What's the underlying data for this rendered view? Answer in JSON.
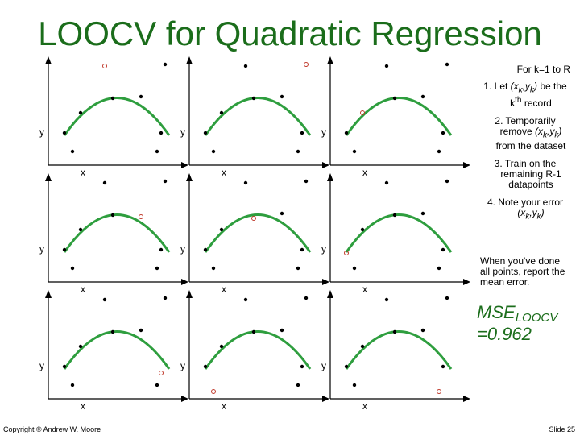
{
  "title": "LOOCV for Quadratic Regression",
  "instructions": {
    "intro": "For k=1 to R",
    "steps": [
      "1. Let (xk,yk) be the kth record",
      "2. Temporarily remove (xk,yk) from the dataset",
      "3. Train on the remaining R-1 datapoints",
      "4. Note your error (xk,yk)"
    ],
    "summary": "When you've done all points, report the mean error."
  },
  "result": {
    "label": "MSE",
    "subscript": "LOOCV",
    "value": "=0.962"
  },
  "axis_labels": {
    "x": "x",
    "y": "y"
  },
  "footer": {
    "copyright": "Copyright © Andrew W. Moore",
    "slide": "Slide 25"
  },
  "colors": {
    "title": "#1b6d1b",
    "curve": "#2e9e3e",
    "point": "#000000",
    "heldout": "#c0392b"
  },
  "chart_data": {
    "type": "scatter",
    "panel_count": 9,
    "fit": "quadratic",
    "description_of_panels": "Each of nine panels shows the same datapoints with one held-out point (hollow red) and the quadratic fitted to the rest."
  }
}
